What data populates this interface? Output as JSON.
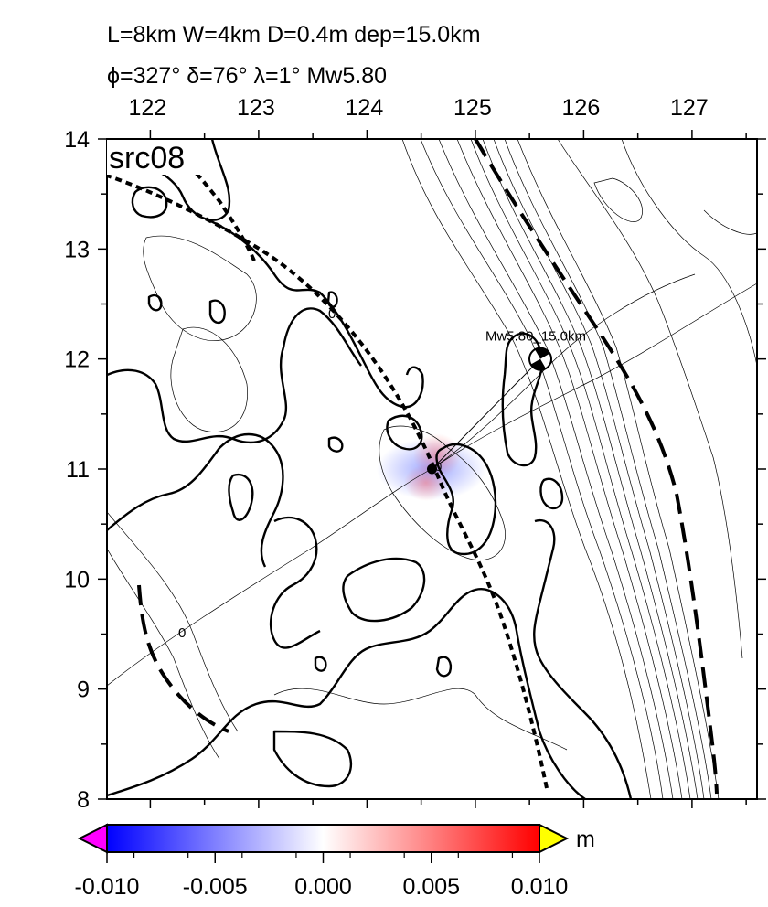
{
  "header": {
    "line1": "L=8km W=4km D=0.4m dep=15.0km",
    "line2": "ϕ=327° δ=76° λ=1° Mw5.80"
  },
  "map": {
    "panel_label": "src08",
    "lon_range": [
      121.6,
      127.6
    ],
    "lat_range": [
      8,
      14
    ],
    "x_ticks": [
      "122",
      "123",
      "124",
      "125",
      "126",
      "127"
    ],
    "x_tick_values": [
      122,
      123,
      124,
      125,
      126,
      127
    ],
    "y_ticks": [
      "14",
      "13",
      "12",
      "11",
      "10",
      "9",
      "8"
    ],
    "y_tick_values": [
      14,
      13,
      12,
      11,
      10,
      9,
      8
    ],
    "epicenter": {
      "lon": 124.6,
      "lat": 11.0
    },
    "mechanism": {
      "label": "Mw5.80_15.0km",
      "lon": 125.6,
      "lat": 12.0
    },
    "contour_labels": [
      {
        "text": "0",
        "lon": 124.3,
        "lat": 12.45
      },
      {
        "text": "0",
        "lon": 122.3,
        "lat": 9.5
      },
      {
        "text": "0",
        "lon": 124.7,
        "lat": 11.05
      }
    ]
  },
  "colorbar": {
    "unit": "m",
    "ticks": [
      "-0.010",
      "-0.005",
      "0.000",
      "0.005",
      "0.010"
    ],
    "min_color": "#0000ff",
    "mid_color": "#ffffff",
    "max_color": "#ff0000",
    "under_color": "#ff00ff",
    "over_color": "#ffff00"
  }
}
